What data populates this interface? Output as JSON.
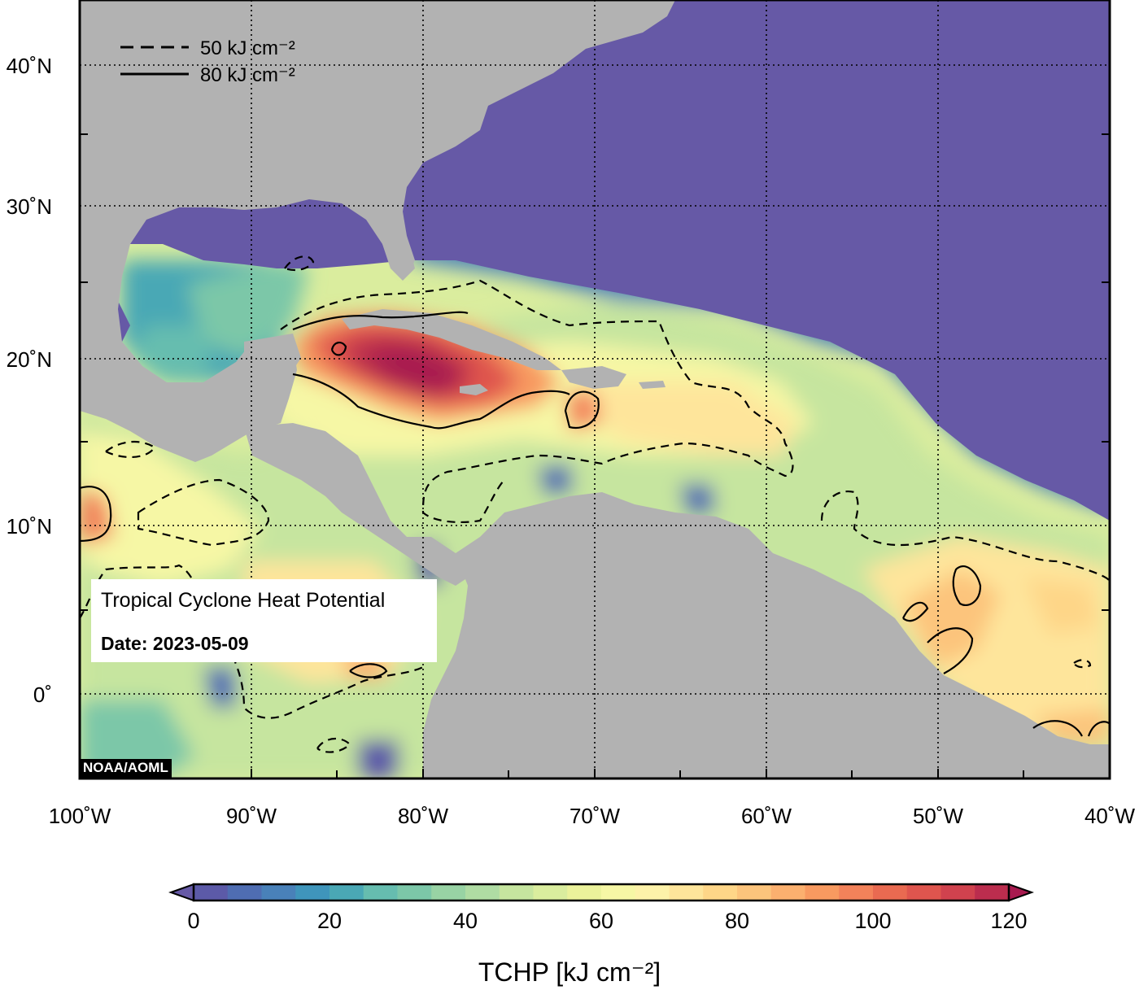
{
  "map": {
    "lon_labels": [
      "100˚W",
      "90˚W",
      "80˚W",
      "70˚W",
      "60˚W",
      "50˚W",
      "40˚W"
    ],
    "lat_labels": [
      "40˚N",
      "30˚N",
      "20˚N",
      "10˚N",
      "0˚"
    ],
    "lon_range": [
      -100,
      -40
    ],
    "lat_range": [
      -5,
      45
    ],
    "land_color": "#b2b2b2",
    "ocean_cool_color": "#6659a6",
    "gridlines": "dotted"
  },
  "contour_legend": {
    "dashed_value": 50,
    "solid_value": 80,
    "dashed_label": "50 kJ cm⁻²",
    "solid_label": "80 kJ cm⁻²"
  },
  "info": {
    "title": "Tropical Cyclone Heat Potential",
    "date": "Date: 2023-05-09"
  },
  "credit": "NOAA/AOML",
  "colorbar": {
    "min": 0,
    "max": 120,
    "tick_labels": [
      "0",
      "20",
      "40",
      "60",
      "80",
      "100",
      "120"
    ],
    "title": "TCHP [kJ cm⁻²]",
    "colors": [
      "#6659a6",
      "#5c5aa8",
      "#4f6db2",
      "#4981b9",
      "#3f95bb",
      "#4aa8b5",
      "#66bdaf",
      "#7cc7a8",
      "#98d3a4",
      "#afdca3",
      "#c6e59f",
      "#daed9e",
      "#ebf29b",
      "#f6f7a5",
      "#fdf2a9",
      "#fee59b",
      "#fed688",
      "#fcc47c",
      "#fbb06f",
      "#f89a60",
      "#f3825a",
      "#e96a51",
      "#df554e",
      "#d0424e",
      "#bb2d4e",
      "#a81a4f"
    ]
  }
}
